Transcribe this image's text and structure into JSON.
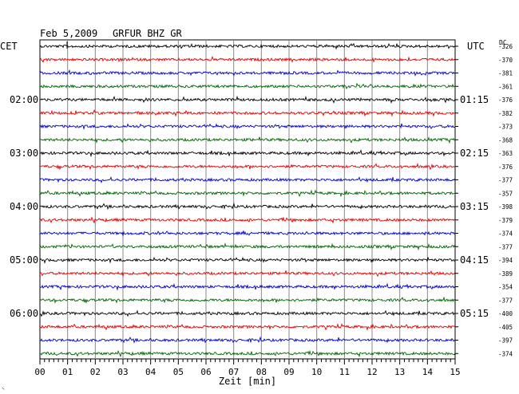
{
  "header": {
    "date": "Feb 5,2009",
    "station": "GRFUR BHZ GR",
    "left_zone": "CET",
    "right_zone": "UTC",
    "dc_label": "DC"
  },
  "footer": {
    "xlabel": "Zeit [min]",
    "corner_mark": "⸜"
  },
  "chart_data": {
    "type": "line",
    "title": "Feb 5,2009   GRFUR BHZ GR",
    "xlabel": "Zeit [min]",
    "ylabel": "",
    "x_ticks": [
      "00",
      "01",
      "02",
      "03",
      "04",
      "05",
      "06",
      "07",
      "08",
      "09",
      "10",
      "11",
      "12",
      "13",
      "14",
      "15"
    ],
    "xlim": [
      0,
      15
    ],
    "grid": true,
    "colors": [
      "#000000",
      "#e00000",
      "#0000c8",
      "#006400"
    ],
    "left_time_labels": [
      {
        "trace": 4,
        "label": "02:00"
      },
      {
        "trace": 8,
        "label": "03:00"
      },
      {
        "trace": 12,
        "label": "04:00"
      },
      {
        "trace": 16,
        "label": "05:00"
      },
      {
        "trace": 20,
        "label": "06:00"
      }
    ],
    "right_time_labels": [
      {
        "trace": 4,
        "label": "01:15"
      },
      {
        "trace": 8,
        "label": "02:15"
      },
      {
        "trace": 12,
        "label": "03:15"
      },
      {
        "trace": 16,
        "label": "04:15"
      },
      {
        "trace": 20,
        "label": "05:15"
      }
    ],
    "dc_offsets": [
      -326,
      -370,
      -381,
      -361,
      -376,
      -382,
      -373,
      -368,
      -363,
      -376,
      -377,
      -357,
      -398,
      -379,
      -374,
      -377,
      -394,
      -389,
      -354,
      -377,
      -400,
      -405,
      -397,
      -374
    ]
  }
}
